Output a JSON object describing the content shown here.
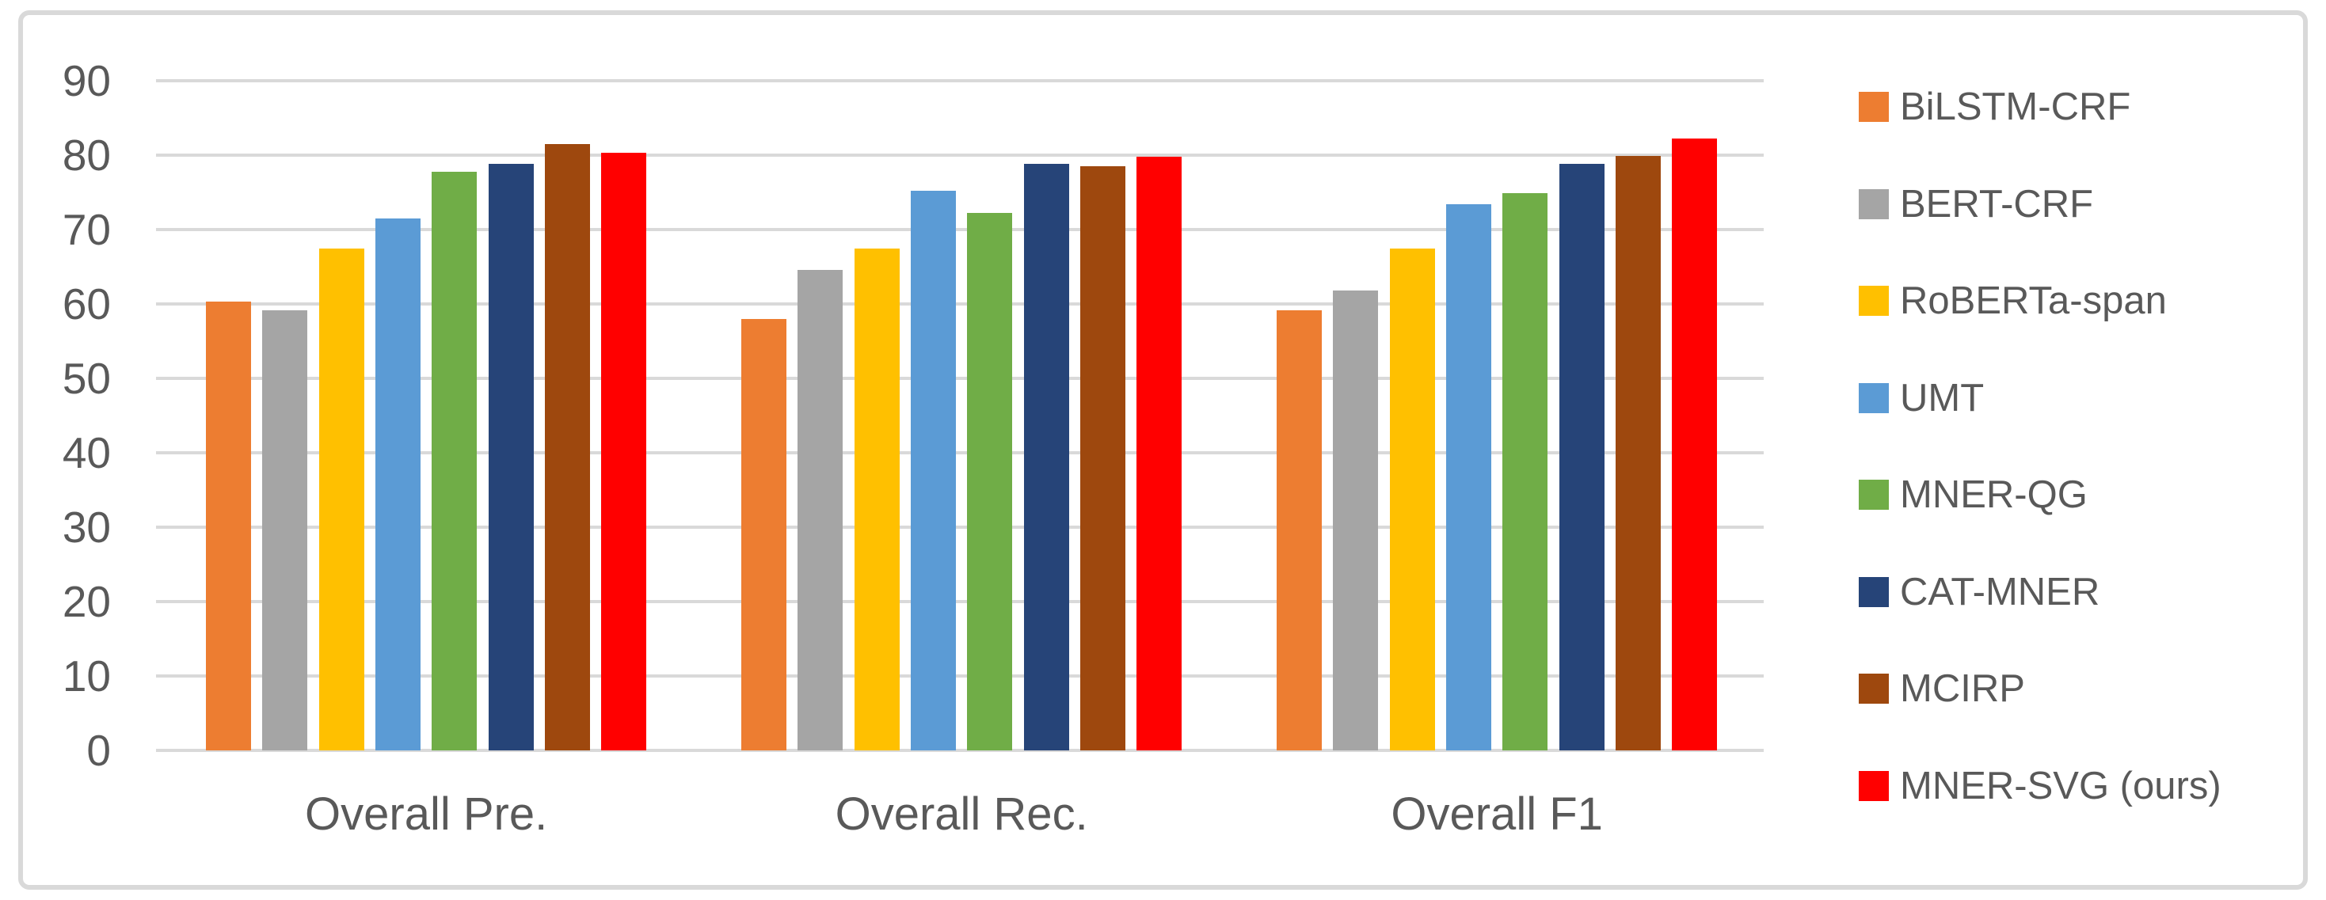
{
  "chart_data": {
    "type": "bar",
    "title": "",
    "categories": [
      "Overall Pre.",
      "Overall Rec.",
      "Overall F1"
    ],
    "series": [
      {
        "name": "BiLSTM-CRF",
        "color": "#ED7D31",
        "values": [
          60.3,
          58.0,
          59.1
        ]
      },
      {
        "name": "BERT-CRF",
        "color": "#A5A5A5",
        "values": [
          59.2,
          64.6,
          61.8
        ]
      },
      {
        "name": "RoBERTa-span",
        "color": "#FFC000",
        "values": [
          67.5,
          67.4,
          67.5
        ]
      },
      {
        "name": "UMT",
        "color": "#5B9BD5",
        "values": [
          71.5,
          75.2,
          73.4
        ]
      },
      {
        "name": "MNER-QG",
        "color": "#70AD47",
        "values": [
          77.8,
          72.2,
          74.9
        ]
      },
      {
        "name": "CAT-MNER",
        "color": "#264478",
        "values": [
          78.8,
          78.8,
          78.8
        ]
      },
      {
        "name": "MCIRP",
        "color": "#9E480E",
        "values": [
          81.5,
          78.5,
          79.9
        ]
      },
      {
        "name": "MNER-SVG (ours)",
        "color": "#FF0000",
        "values": [
          80.3,
          79.8,
          82.2
        ]
      }
    ],
    "xlabel": "",
    "ylabel": "",
    "ylim": [
      0,
      90
    ],
    "yticks": [
      0,
      10,
      20,
      30,
      40,
      50,
      60,
      70,
      80,
      90
    ],
    "grid": true,
    "legend_position": "right",
    "colors": {
      "grid": "#D9D9D9",
      "axis_text": "#595959",
      "frame_border": "#D9D9D9",
      "background": "#FFFFFF"
    }
  }
}
